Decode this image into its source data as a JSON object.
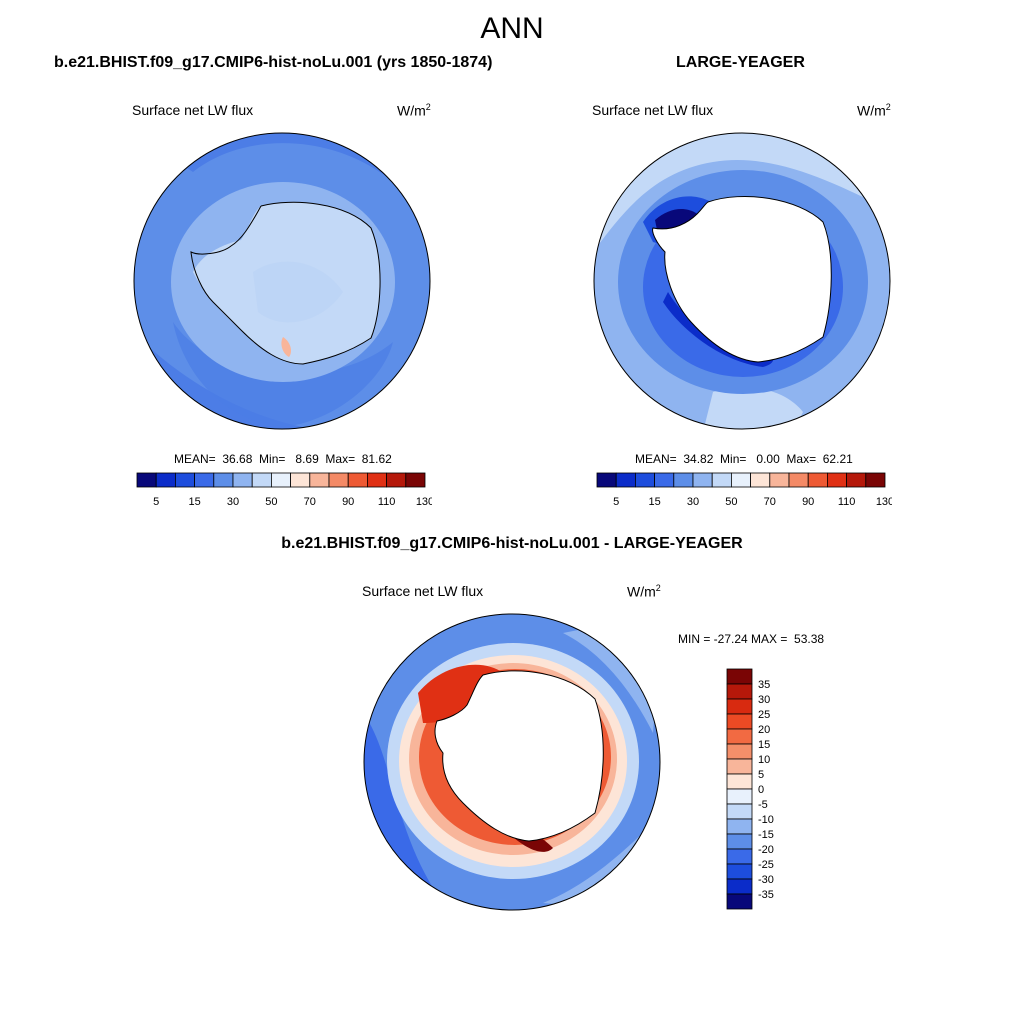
{
  "main_title": "ANN",
  "panels": [
    {
      "title": "b.e21.BHIST.f09_g17.CMIP6-hist-noLu.001 (yrs 1850-1874)",
      "variable": "Surface net LW flux",
      "units_base": "W/m",
      "units_exp": "2",
      "stats": "MEAN=  36.68  Min=   8.69  Max=  81.62"
    },
    {
      "title": "LARGE-YEAGER",
      "variable": "Surface net LW flux",
      "units_base": "W/m",
      "units_exp": "2",
      "stats": "MEAN=  34.82  Min=   0.00  Max=  62.21"
    },
    {
      "title": "b.e21.BHIST.f09_g17.CMIP6-hist-noLu.001 - LARGE-YEAGER",
      "variable": "Surface net LW flux",
      "units_base": "W/m",
      "units_exp": "2",
      "stats": "MIN = -27.24 MAX =  53.38"
    }
  ],
  "colorbar_abs": {
    "labels": [
      "5",
      "15",
      "30",
      "50",
      "70",
      "90",
      "110",
      "130"
    ],
    "colors": [
      "#08087a",
      "#0b2cc9",
      "#1d4ddd",
      "#3a6ae8",
      "#5d8ee8",
      "#8fb4f0",
      "#c3d9f7",
      "#e8f1fc",
      "#fde5d7",
      "#f8b59a",
      "#f48a66",
      "#ee5a34",
      "#e03014",
      "#b5180a",
      "#7a0505"
    ]
  },
  "colorbar_diff": {
    "labels": [
      "35",
      "30",
      "25",
      "20",
      "15",
      "10",
      "5",
      "0",
      "-5",
      "-10",
      "-15",
      "-20",
      "-25",
      "-30",
      "-35"
    ],
    "colors": [
      "#7a0505",
      "#b5180a",
      "#d82a10",
      "#ec4a24",
      "#f26a42",
      "#f48f6a",
      "#f8b59a",
      "#fde5d7",
      "#e8f1fc",
      "#c3d9f7",
      "#8fb4f0",
      "#5d8ee8",
      "#3a6ae8",
      "#1d4ddd",
      "#0b2cc9",
      "#08087a"
    ]
  }
}
